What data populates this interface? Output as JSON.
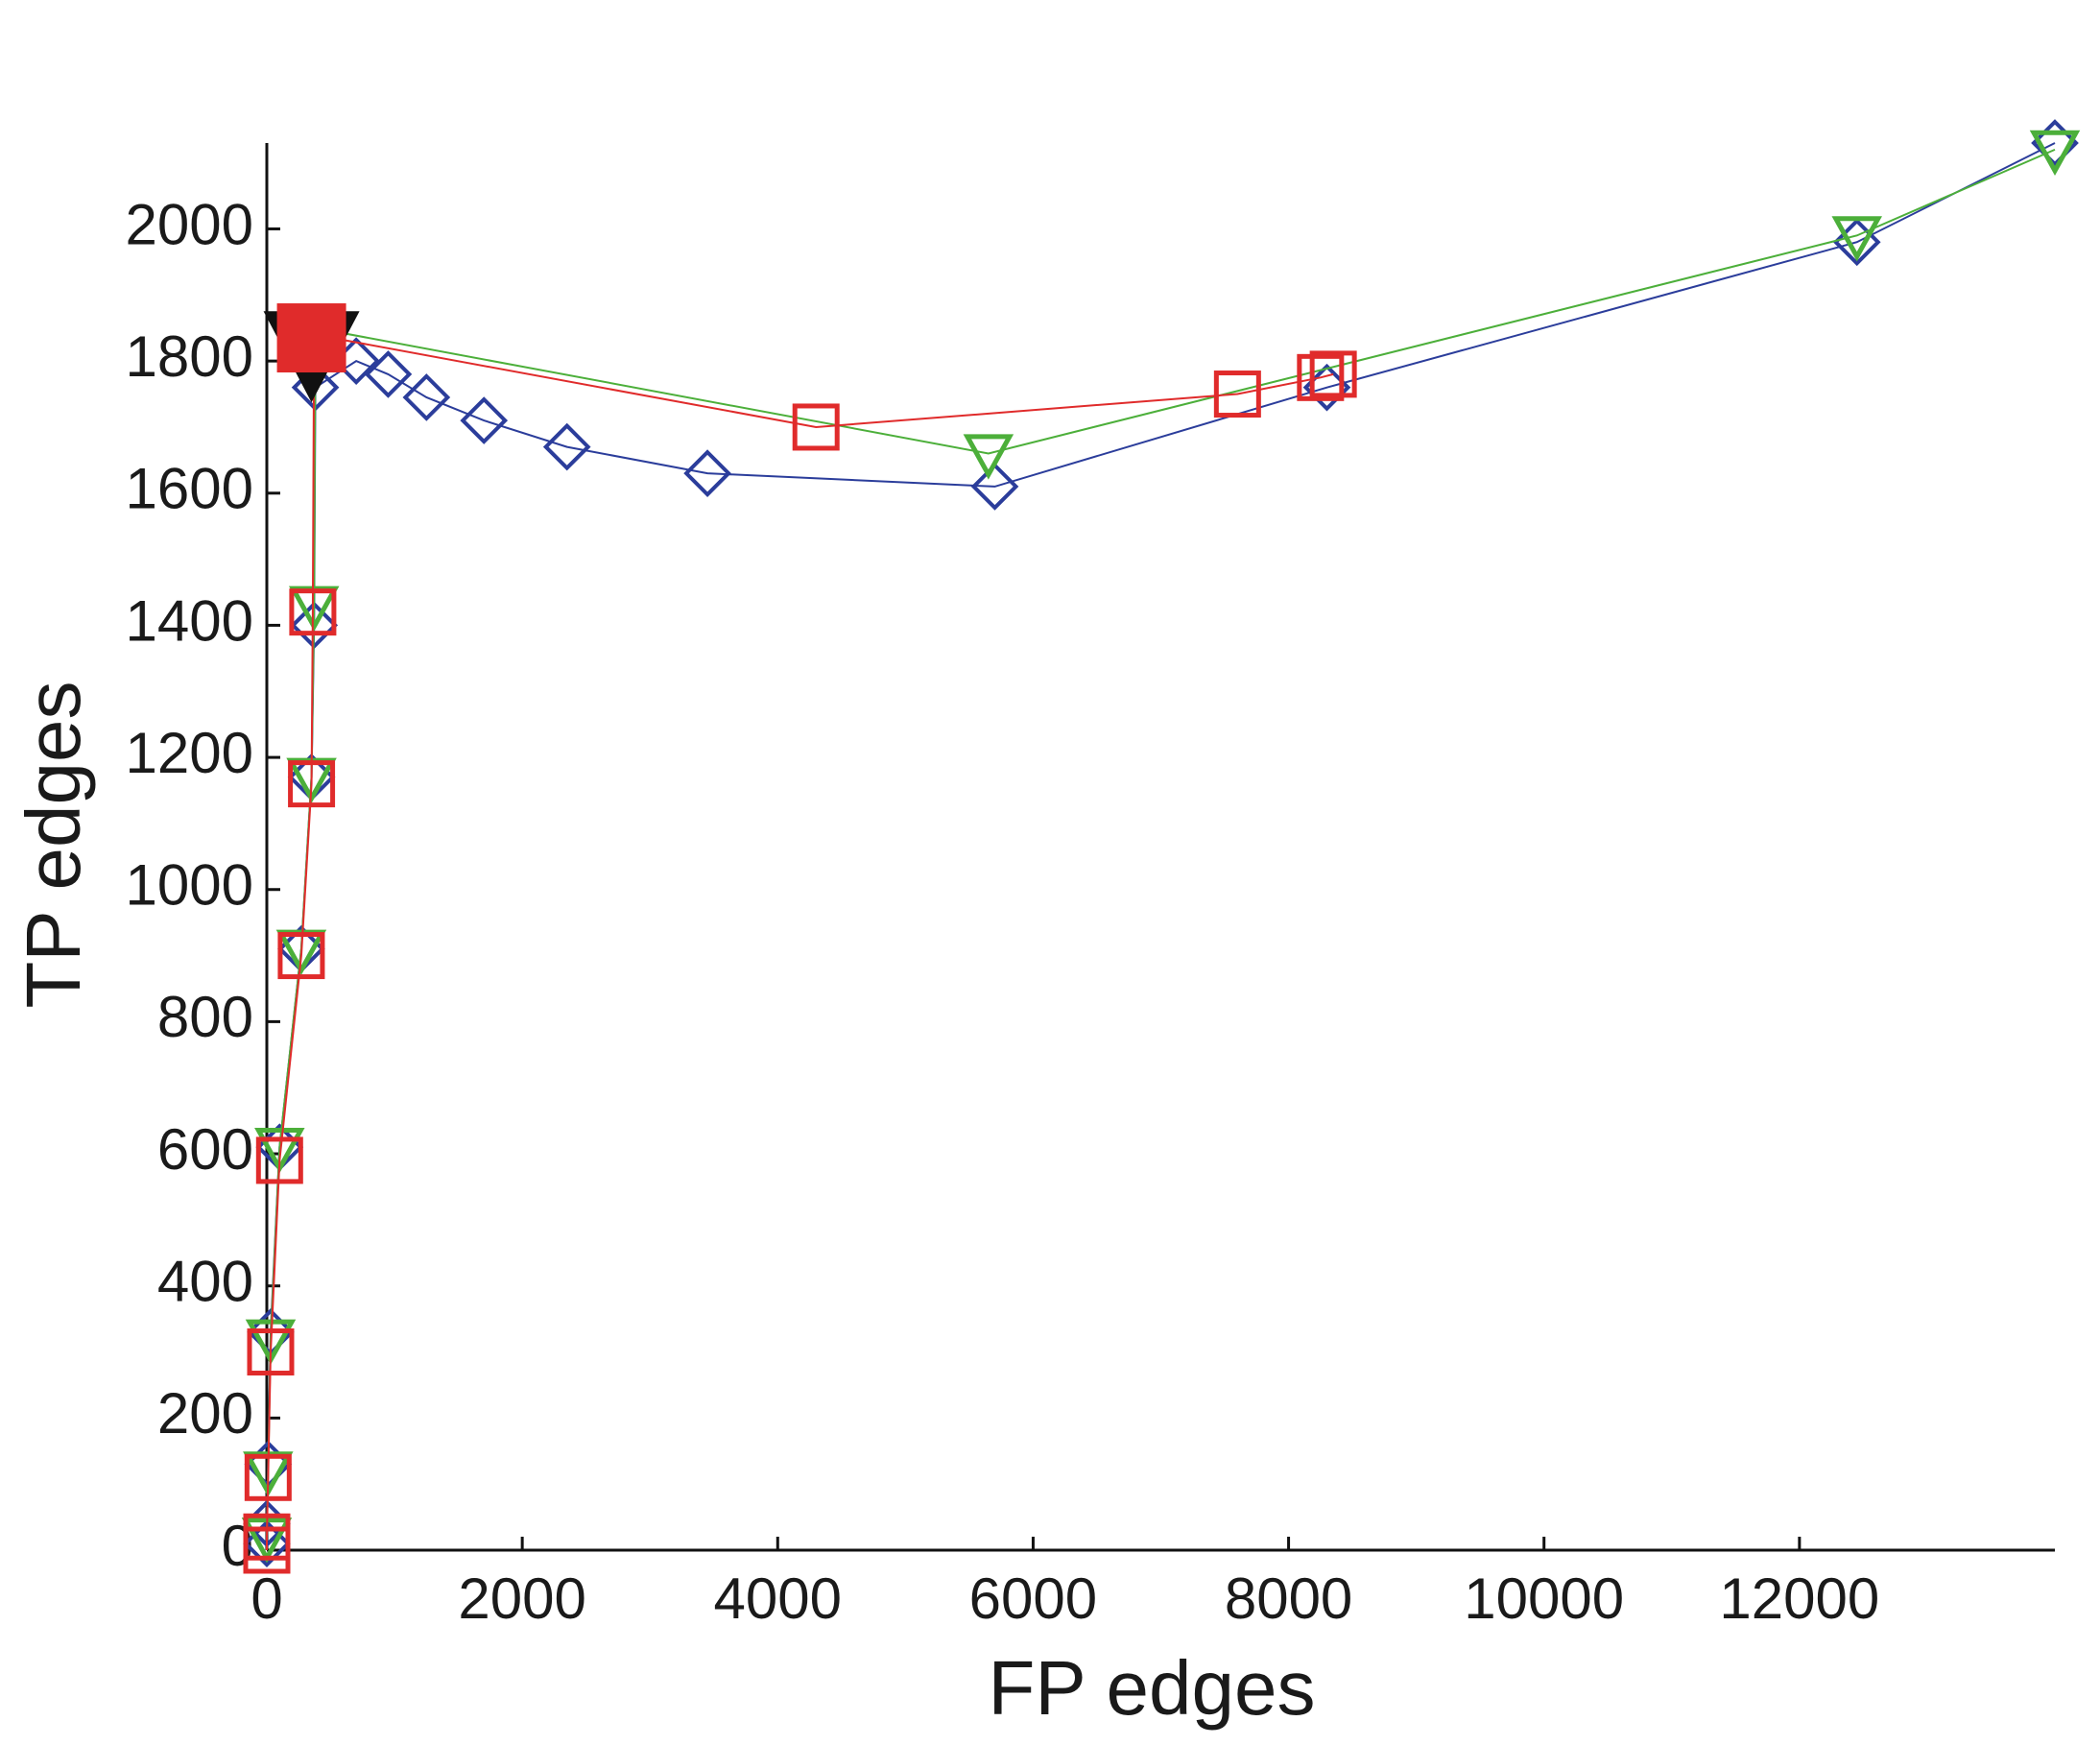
{
  "chart_data": {
    "type": "line",
    "xlabel": "FP edges",
    "ylabel": "TP edges",
    "xlim": [
      0,
      14000
    ],
    "ylim": [
      0,
      2130
    ],
    "xticks": [
      0,
      2000,
      4000,
      6000,
      8000,
      10000,
      12000
    ],
    "yticks": [
      0,
      200,
      400,
      600,
      800,
      1000,
      1200,
      1400,
      1600,
      1800,
      2000
    ],
    "series": [
      {
        "color": "#2b3d9b",
        "marker": "diamond",
        "x": [
          0,
          0,
          10,
          30,
          100,
          270,
          350,
          370,
          380,
          700,
          950,
          1250,
          1700,
          2350,
          3450,
          5700,
          8300,
          12450,
          14000
        ],
        "values": [
          10,
          40,
          130,
          330,
          610,
          910,
          1170,
          1400,
          1760,
          1800,
          1780,
          1745,
          1710,
          1670,
          1630,
          1610,
          1760,
          1980,
          2130
        ]
      },
      {
        "color": "#4caf3a",
        "marker": "triangle",
        "x": [
          0,
          10,
          30,
          100,
          270,
          350,
          370,
          380,
          5650,
          12450,
          14000
        ],
        "values": [
          20,
          120,
          320,
          610,
          910,
          1170,
          1430,
          1850,
          1660,
          1990,
          2120
        ]
      },
      {
        "color": "#e02b2b",
        "marker": "square",
        "x": [
          0,
          0,
          10,
          30,
          100,
          270,
          350,
          360,
          370,
          4300,
          7600,
          8250,
          8350
        ],
        "values": [
          0,
          20,
          110,
          300,
          590,
          900,
          1160,
          1420,
          1840,
          1700,
          1750,
          1775,
          1780
        ]
      },
      {
        "color": "#111111",
        "marker": "filled-triangle",
        "x": [
          350
        ],
        "values": [
          1810
        ]
      },
      {
        "color": "#e02b2b",
        "marker": "filled-square",
        "x": [
          350
        ],
        "values": [
          1835
        ]
      }
    ]
  }
}
